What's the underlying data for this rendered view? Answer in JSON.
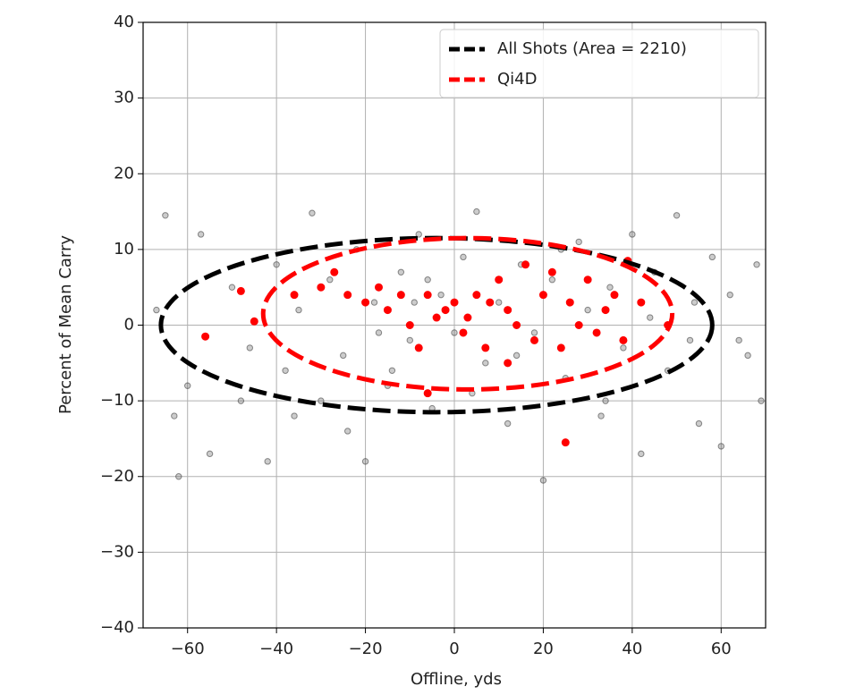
{
  "chart_data": {
    "type": "scatter",
    "xlabel": "Offline, yds",
    "ylabel": "Percent of Mean Carry",
    "xlim": [
      -70,
      70
    ],
    "ylim": [
      -40,
      40
    ],
    "xticks": [
      {
        "value": -60,
        "label": "−60"
      },
      {
        "value": -40,
        "label": "−40"
      },
      {
        "value": -20,
        "label": "−20"
      },
      0,
      20,
      40,
      60
    ],
    "yticks": [
      {
        "value": -40,
        "label": "−40"
      },
      {
        "value": -30,
        "label": "−30"
      },
      {
        "value": -20,
        "label": "−20"
      },
      {
        "value": -10,
        "label": "−10"
      },
      0,
      10,
      20,
      30,
      40
    ],
    "grid": true,
    "legend": "upper right",
    "ellipses": [
      {
        "name": "All Shots (Area = 2210)",
        "color": "#000000",
        "cx": -4,
        "cy": 0,
        "rx": 62,
        "ry": 11.5
      },
      {
        "name": "Qi4D",
        "color": "#ff0000",
        "cx": 3,
        "cy": 1.5,
        "rx": 46,
        "ry": 10
      }
    ],
    "series": [
      {
        "color": "#555555",
        "x": [
          -67,
          -65,
          -62,
          -60,
          -57,
          -55,
          -50,
          -46,
          -42,
          -40,
          -38,
          -35,
          -32,
          -30,
          -28,
          -25,
          -22,
          -20,
          -18,
          -15,
          -12,
          -10,
          -8,
          -5,
          -3,
          0,
          2,
          5,
          7,
          10,
          12,
          15,
          18,
          20,
          22,
          25,
          28,
          30,
          33,
          35,
          38,
          40,
          42,
          45,
          48,
          50,
          53,
          55,
          58,
          60,
          62,
          66,
          68,
          69,
          -63,
          -48,
          -36,
          -24,
          -14,
          -6,
          4,
          14,
          24,
          34,
          44,
          54,
          64,
          -17,
          3,
          -9
        ],
        "y": [
          2,
          14.5,
          -20,
          -8,
          12,
          -17,
          5,
          -3,
          -18,
          8,
          -6,
          2,
          14.8,
          -10,
          6,
          -4,
          10,
          -18,
          3,
          -8,
          7,
          -2,
          12,
          -11,
          4,
          -1,
          9,
          15,
          -5,
          3,
          -13,
          8,
          -1,
          -20.5,
          6,
          -7,
          11,
          2,
          -12,
          5,
          -3,
          12,
          -17,
          7,
          -6,
          14.5,
          -2,
          -13,
          9,
          -16,
          4,
          -4,
          8,
          -10,
          -12,
          -10,
          -12,
          -14,
          -6,
          6,
          -9,
          -4,
          10,
          -10,
          1,
          3,
          -2,
          -1,
          1,
          3
        ]
      },
      {
        "color": "#ff0000",
        "x": [
          -56,
          -48,
          -45,
          -36,
          -30,
          -27,
          -24,
          -20,
          -17,
          -15,
          -12,
          -10,
          -8,
          -6,
          -4,
          -2,
          0,
          2,
          3,
          5,
          7,
          8,
          10,
          12,
          14,
          16,
          18,
          20,
          22,
          24,
          26,
          28,
          30,
          32,
          34,
          36,
          38,
          39,
          42,
          48,
          25,
          -6,
          12
        ],
        "y": [
          -1.5,
          4.5,
          0.5,
          4,
          5,
          7,
          4,
          3,
          5,
          2,
          4,
          0,
          -3,
          4,
          1,
          2,
          3,
          -1,
          1,
          4,
          -3,
          3,
          6,
          2,
          0,
          8,
          -2,
          4,
          7,
          -3,
          3,
          0,
          6,
          -1,
          2,
          4,
          -2,
          8.5,
          3,
          0,
          -15.5,
          -9,
          -5
        ]
      }
    ]
  }
}
